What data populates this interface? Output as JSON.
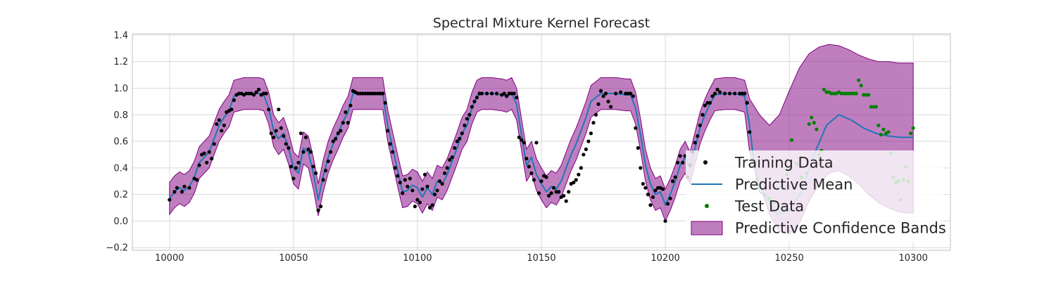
{
  "chart_data": {
    "type": "line",
    "title": "Spectral Mixture Kernel Forecast",
    "xlabel": "",
    "ylabel": "",
    "xlim": [
      9985,
      10315
    ],
    "ylim": [
      -0.22,
      1.41
    ],
    "x_ticks": [
      10000,
      10050,
      10100,
      10150,
      10200,
      10250,
      10300
    ],
    "y_ticks": [
      -0.2,
      0.0,
      0.2,
      0.4,
      0.6,
      0.8,
      1.0,
      1.2,
      1.4
    ],
    "x_tick_labels": [
      "10000",
      "10050",
      "10100",
      "10150",
      "10200",
      "10250",
      "10300"
    ],
    "y_tick_labels": [
      "−0.2",
      "0.0",
      "0.2",
      "0.4",
      "0.6",
      "0.8",
      "1.0",
      "1.2",
      "1.4"
    ],
    "grid": true,
    "legend_position": "bottom-right",
    "legend": [
      "Training Data",
      "Predictive Mean",
      "Test Data",
      "Predictive Confidence Bands"
    ],
    "colors": {
      "training": "#000000",
      "mean": "#1f77b4",
      "test": "#008000",
      "band_fill": "#800080",
      "band_edge": "#800080",
      "grid": "#d9d9d9",
      "axes": "#cccccc"
    },
    "confidence_band_halfwidth_train": 0.12,
    "predictive_mean": {
      "x": [
        10000,
        10002,
        10004,
        10006,
        10008,
        10010,
        10012,
        10014,
        10016,
        10018,
        10020,
        10022,
        10024,
        10026,
        10030,
        10034,
        10036,
        10038,
        10040,
        10042,
        10044,
        10046,
        10048,
        10050,
        10052,
        10054,
        10056,
        10058,
        10060,
        10062,
        10064,
        10066,
        10068,
        10070,
        10072,
        10074,
        10080,
        10084,
        10086,
        10088,
        10090,
        10092,
        10094,
        10096,
        10098,
        10100,
        10102,
        10104,
        10106,
        10108,
        10110,
        10112,
        10114,
        10116,
        10118,
        10120,
        10122,
        10124,
        10126,
        10130,
        10134,
        10136,
        10138,
        10140,
        10142,
        10144,
        10146,
        10148,
        10150,
        10152,
        10154,
        10156,
        10158,
        10160,
        10162,
        10164,
        10166,
        10168,
        10170,
        10174,
        10180,
        10184,
        10186,
        10188,
        10190,
        10192,
        10194,
        10196,
        10198,
        10200,
        10202,
        10204,
        10206,
        10208,
        10210,
        10212,
        10214,
        10216,
        10218,
        10220,
        10224,
        10228,
        10230,
        10232,
        10234,
        10236,
        10238,
        10240,
        10245,
        10250,
        10255,
        10260,
        10265,
        10270,
        10275,
        10280,
        10285,
        10290,
        10295,
        10300
      ],
      "y": [
        0.17,
        0.22,
        0.25,
        0.23,
        0.26,
        0.33,
        0.44,
        0.48,
        0.52,
        0.62,
        0.72,
        0.78,
        0.83,
        0.94,
        0.96,
        0.96,
        0.96,
        0.95,
        0.85,
        0.68,
        0.62,
        0.66,
        0.55,
        0.4,
        0.36,
        0.55,
        0.52,
        0.36,
        0.16,
        0.34,
        0.48,
        0.58,
        0.66,
        0.75,
        0.82,
        0.96,
        0.96,
        0.96,
        0.96,
        0.72,
        0.55,
        0.38,
        0.22,
        0.23,
        0.27,
        0.25,
        0.18,
        0.25,
        0.2,
        0.3,
        0.28,
        0.35,
        0.45,
        0.55,
        0.66,
        0.72,
        0.85,
        0.94,
        0.96,
        0.96,
        0.95,
        0.94,
        0.96,
        0.88,
        0.65,
        0.42,
        0.48,
        0.35,
        0.28,
        0.22,
        0.26,
        0.24,
        0.3,
        0.4,
        0.5,
        0.58,
        0.68,
        0.78,
        0.9,
        0.96,
        0.96,
        0.95,
        0.95,
        0.85,
        0.65,
        0.42,
        0.28,
        0.2,
        0.22,
        0.12,
        0.2,
        0.3,
        0.42,
        0.48,
        0.4,
        0.55,
        0.7,
        0.8,
        0.88,
        0.95,
        0.96,
        0.96,
        0.95,
        0.94,
        0.72,
        0.4,
        0.22,
        0.2,
        0.05,
        0.08,
        0.22,
        0.5,
        0.72,
        0.8,
        0.76,
        0.7,
        0.66,
        0.64,
        0.63,
        0.63
      ]
    },
    "confidence_band_forecast": {
      "x": [
        10234,
        10238,
        10242,
        10246,
        10250,
        10254,
        10258,
        10262,
        10266,
        10270,
        10274,
        10278,
        10282,
        10286,
        10290,
        10294,
        10298,
        10300
      ],
      "lower": [
        0.52,
        0.28,
        0.05,
        -0.08,
        -0.1,
        -0.02,
        0.15,
        0.28,
        0.36,
        0.38,
        0.34,
        0.28,
        0.2,
        0.14,
        0.1,
        0.07,
        0.06,
        0.06
      ],
      "upper": [
        0.92,
        0.8,
        0.72,
        0.8,
        0.98,
        1.15,
        1.26,
        1.31,
        1.33,
        1.32,
        1.29,
        1.25,
        1.22,
        1.2,
        1.2,
        1.19,
        1.19,
        1.19
      ]
    },
    "training_data": {
      "x": [
        10000,
        10002,
        10003,
        10005,
        10006,
        10008,
        10010,
        10011,
        10012,
        10013,
        10014,
        10015,
        10016,
        10017,
        10018,
        10019,
        10020,
        10021,
        10022,
        10023,
        10024,
        10025,
        10026,
        10027,
        10028,
        10029,
        10030,
        10031,
        10032,
        10033,
        10034,
        10035,
        10036,
        10037,
        10038,
        10039,
        10040,
        10041,
        10042,
        10043,
        10044,
        10045,
        10046,
        10047,
        10048,
        10049,
        10050,
        10051,
        10052,
        10053,
        10054,
        10055,
        10056,
        10057,
        10058,
        10059,
        10060,
        10061,
        10062,
        10063,
        10064,
        10065,
        10066,
        10067,
        10068,
        10069,
        10070,
        10071,
        10072,
        10073,
        10074,
        10075,
        10076,
        10077,
        10078,
        10079,
        10080,
        10081,
        10082,
        10083,
        10084,
        10085,
        10086,
        10087,
        10088,
        10089,
        10090,
        10091,
        10092,
        10093,
        10094,
        10095,
        10096,
        10097,
        10098,
        10099,
        10100,
        10101,
        10102,
        10103,
        10104,
        10105,
        10106,
        10107,
        10108,
        10109,
        10110,
        10111,
        10112,
        10113,
        10114,
        10115,
        10116,
        10117,
        10118,
        10119,
        10120,
        10121,
        10122,
        10123,
        10124,
        10125,
        10126,
        10128,
        10130,
        10132,
        10134,
        10135,
        10136,
        10137,
        10138,
        10139,
        10140,
        10141,
        10142,
        10143,
        10144,
        10145,
        10146,
        10147,
        10148,
        10149,
        10150,
        10151,
        10152,
        10153,
        10154,
        10155,
        10156,
        10157,
        10158,
        10159,
        10160,
        10161,
        10162,
        10163,
        10164,
        10165,
        10166,
        10167,
        10168,
        10169,
        10170,
        10171,
        10172,
        10173,
        10174,
        10175,
        10176,
        10177,
        10178,
        10180,
        10182,
        10184,
        10185,
        10186,
        10187,
        10188,
        10189,
        10190,
        10191,
        10192,
        10193,
        10194,
        10195,
        10196,
        10197,
        10198,
        10199,
        10200,
        10201,
        10202,
        10203,
        10204,
        10205,
        10206,
        10207,
        10208,
        10209,
        10210,
        10211,
        10212,
        10213,
        10214,
        10215,
        10216,
        10217,
        10218,
        10219,
        10220,
        10221,
        10222,
        10224,
        10226,
        10228,
        10230,
        10231,
        10232,
        10233,
        10234
      ],
      "y": [
        0.16,
        0.22,
        0.25,
        0.22,
        0.26,
        0.25,
        0.32,
        0.31,
        0.42,
        0.5,
        0.51,
        0.44,
        0.52,
        0.47,
        0.58,
        0.73,
        0.76,
        0.68,
        0.72,
        0.82,
        0.83,
        0.84,
        0.91,
        0.95,
        0.96,
        0.96,
        0.95,
        0.96,
        0.96,
        0.96,
        0.95,
        0.97,
        0.99,
        0.95,
        0.96,
        0.96,
        0.84,
        0.66,
        0.63,
        0.68,
        0.84,
        0.7,
        0.64,
        0.58,
        0.55,
        0.41,
        0.32,
        0.4,
        0.44,
        0.66,
        0.52,
        0.63,
        0.54,
        0.52,
        0.41,
        0.36,
        0.08,
        0.11,
        0.31,
        0.38,
        0.45,
        0.52,
        0.6,
        0.62,
        0.66,
        0.68,
        0.74,
        0.82,
        0.74,
        0.87,
        0.98,
        0.97,
        0.96,
        0.96,
        0.96,
        0.96,
        0.96,
        0.96,
        0.96,
        0.96,
        0.96,
        0.96,
        0.96,
        0.89,
        0.68,
        0.58,
        0.52,
        0.4,
        0.34,
        0.29,
        0.21,
        0.31,
        0.26,
        0.32,
        0.23,
        0.11,
        0.16,
        0.14,
        0.24,
        0.35,
        0.26,
        0.1,
        0.12,
        0.2,
        0.23,
        0.3,
        0.28,
        0.36,
        0.4,
        0.46,
        0.48,
        0.55,
        0.6,
        0.62,
        0.66,
        0.72,
        0.77,
        0.8,
        0.86,
        0.9,
        0.93,
        0.96,
        0.96,
        0.96,
        0.96,
        0.96,
        0.95,
        0.96,
        0.94,
        0.96,
        0.96,
        0.96,
        0.93,
        0.63,
        0.61,
        0.59,
        0.47,
        0.41,
        0.36,
        0.31,
        0.59,
        0.21,
        0.3,
        0.34,
        0.33,
        0.19,
        0.21,
        0.25,
        0.22,
        0.22,
        0.18,
        0.19,
        0.15,
        0.22,
        0.28,
        0.29,
        0.31,
        0.35,
        0.4,
        0.5,
        0.54,
        0.6,
        0.66,
        0.74,
        0.8,
        0.88,
        0.98,
        0.94,
        0.96,
        0.9,
        0.86,
        0.96,
        0.97,
        0.96,
        0.96,
        0.96,
        0.94,
        0.7,
        0.55,
        0.4,
        0.28,
        0.25,
        0.2,
        0.12,
        0.18,
        0.23,
        0.25,
        0.25,
        0.24,
        0.0,
        0.13,
        0.17,
        0.3,
        0.33,
        0.44,
        0.49,
        0.44,
        0.49,
        0.33,
        0.42,
        0.52,
        0.59,
        0.64,
        0.72,
        0.8,
        0.87,
        0.89,
        0.89,
        0.94,
        0.96,
        0.99,
        0.97,
        0.96,
        0.96,
        0.96,
        0.96,
        0.96,
        0.96,
        0.89,
        0.67
      ]
    },
    "test_data": {
      "x": [
        10235,
        10237,
        10240,
        10242,
        10244,
        10247,
        10249,
        10251,
        10253,
        10255,
        10257,
        10258,
        10259,
        10260,
        10261,
        10262,
        10263,
        10264,
        10265,
        10266,
        10267,
        10268,
        10269,
        10270,
        10271,
        10272,
        10273,
        10274,
        10275,
        10276,
        10277,
        10278,
        10279,
        10280,
        10281,
        10282,
        10283,
        10284,
        10285,
        10286,
        10287,
        10288,
        10289,
        10290,
        10291,
        10292,
        10293,
        10294,
        10295,
        10296,
        10297,
        10298,
        10299,
        10300
      ],
      "y": [
        0.46,
        0.32,
        0.2,
        0.17,
        0.14,
        0.26,
        0.35,
        0.61,
        0.43,
        0.33,
        0.36,
        0.73,
        0.78,
        0.74,
        0.69,
        0.5,
        0.53,
        0.99,
        0.97,
        0.97,
        0.96,
        0.96,
        0.96,
        0.97,
        0.96,
        0.96,
        0.96,
        0.96,
        0.96,
        0.96,
        0.96,
        1.06,
        1.02,
        0.95,
        0.95,
        0.95,
        0.86,
        0.86,
        0.86,
        0.72,
        0.65,
        0.69,
        0.66,
        0.67,
        0.51,
        0.33,
        0.29,
        0.3,
        0.16,
        0.31,
        0.41,
        0.3,
        0.66,
        0.7
      ]
    }
  }
}
